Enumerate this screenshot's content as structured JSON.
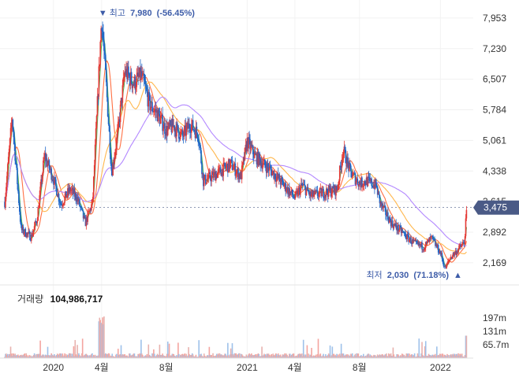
{
  "chart_data": {
    "type": "candlestick",
    "price_axis": {
      "ticks": [
        "7,953",
        "7,230",
        "6,507",
        "5,784",
        "5,061",
        "4,338",
        "3,615",
        "2,892",
        "2,169"
      ],
      "tick_values": [
        7953,
        7230,
        6507,
        5784,
        5061,
        4338,
        3615,
        2892,
        2169
      ],
      "ylim": [
        1870,
        8230
      ]
    },
    "x_axis": {
      "labels": [
        "2020",
        "4월",
        "8월",
        "2021",
        "4월",
        "8월",
        "2022"
      ],
      "dates": [
        "2020-01",
        "2020-04",
        "2020-08",
        "2021-01",
        "2021-04",
        "2021-08",
        "2022-01"
      ],
      "range": [
        "2019-10",
        "2022-02"
      ]
    },
    "current_price": {
      "label": "3,475",
      "value": 3475,
      "color": "#4a5a86"
    },
    "high_annotation": {
      "prefix": "▼ 최고",
      "value": "7,980",
      "change": "(-56.45%)"
    },
    "low_annotation": {
      "prefix": "최저",
      "value": "2,030",
      "change": "(71.18%)",
      "suffix": "▲"
    },
    "price_path": [
      [
        "2019-10",
        3610
      ],
      [
        "2019-10-15",
        5600
      ],
      [
        "2019-11",
        2950
      ],
      [
        "2019-11-20",
        2780
      ],
      [
        "2019-12",
        3200
      ],
      [
        "2019-12-15",
        4700
      ],
      [
        "2020-01",
        4150
      ],
      [
        "2020-01-15",
        3550
      ],
      [
        "2020-02",
        3900
      ],
      [
        "2020-02-15",
        3700
      ],
      [
        "2020-03",
        3100
      ],
      [
        "2020-03-15",
        3600
      ],
      [
        "2020-04",
        7980
      ],
      [
        "2020-04-10",
        6300
      ],
      [
        "2020-04-20",
        4300
      ],
      [
        "2020-05",
        5200
      ],
      [
        "2020-05-15",
        6700
      ],
      [
        "2020-06",
        6400
      ],
      [
        "2020-06-15",
        6600
      ],
      [
        "2020-07",
        5900
      ],
      [
        "2020-07-15",
        5700
      ],
      [
        "2020-08",
        5300
      ],
      [
        "2020-08-15",
        5400
      ],
      [
        "2020-09",
        5150
      ],
      [
        "2020-09-15",
        5450
      ],
      [
        "2020-10",
        5200
      ],
      [
        "2020-10-10",
        4100
      ],
      [
        "2020-11",
        4250
      ],
      [
        "2020-12",
        4500
      ],
      [
        "2020-12-20",
        4200
      ],
      [
        "2021-01",
        5050
      ],
      [
        "2021-01-15",
        4700
      ],
      [
        "2021-02",
        4500
      ],
      [
        "2021-02-15",
        4350
      ],
      [
        "2021-03",
        4150
      ],
      [
        "2021-04",
        3700
      ],
      [
        "2021-04-15",
        4000
      ],
      [
        "2021-05",
        3750
      ],
      [
        "2021-06",
        3850
      ],
      [
        "2021-06-20",
        3900
      ],
      [
        "2021-07",
        4850
      ],
      [
        "2021-07-15",
        4300
      ],
      [
        "2021-08",
        4050
      ],
      [
        "2021-08-15",
        4100
      ],
      [
        "2021-09",
        4000
      ],
      [
        "2021-09-10",
        3550
      ],
      [
        "2021-10",
        3100
      ],
      [
        "2021-10-20",
        2900
      ],
      [
        "2021-11",
        2750
      ],
      [
        "2021-11-15",
        2600
      ],
      [
        "2021-12",
        2550
      ],
      [
        "2021-12-15",
        2750
      ],
      [
        "2022-01",
        2400
      ],
      [
        "2022-01-10",
        2030
      ],
      [
        "2022-01-20",
        2300
      ],
      [
        "2022-02",
        2450
      ],
      [
        "2022-02-15",
        2650
      ],
      [
        "2022-02-20",
        3475
      ]
    ],
    "volume": {
      "label": "거래량",
      "value": "104,986,717",
      "axis_ticks": [
        "197m",
        "131m",
        "65.7m"
      ],
      "axis_values": [
        197,
        131,
        65.7
      ],
      "ylim": [
        0,
        270
      ]
    },
    "moving_averages": [
      {
        "color": "#4caf50"
      },
      {
        "color": "#ff7043"
      },
      {
        "color": "#ffb74d"
      },
      {
        "color": "#b388ff"
      }
    ]
  }
}
